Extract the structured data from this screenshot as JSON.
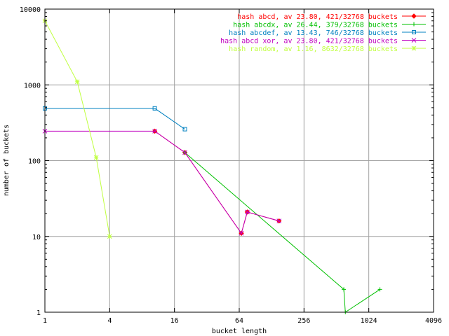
{
  "chart_data": {
    "type": "line",
    "xlabel": "bucket length",
    "ylabel": "number of buckets",
    "xscale": "log2",
    "yscale": "log10",
    "xlim": [
      1,
      4096
    ],
    "ylim": [
      1,
      10000
    ],
    "x_ticks": [
      {
        "value": 1,
        "label": "1"
      },
      {
        "value": 4,
        "label": "4"
      },
      {
        "value": 16,
        "label": "16"
      },
      {
        "value": 64,
        "label": "64"
      },
      {
        "value": 256,
        "label": "256"
      },
      {
        "value": 1024,
        "label": "1024"
      },
      {
        "value": 4096,
        "label": "4096"
      }
    ],
    "y_ticks": [
      {
        "value": 1,
        "label": "1"
      },
      {
        "value": 10,
        "label": "10"
      },
      {
        "value": 100,
        "label": "100"
      },
      {
        "value": 1000,
        "label": "1000"
      },
      {
        "value": 10000,
        "label": "10000"
      }
    ],
    "grid": true,
    "legend_position": "top-right",
    "series": [
      {
        "name": "hash abcd, av 23.80, 421/32768 buckets",
        "color": "#ff0000",
        "marker": "diamond",
        "points": [
          [
            10.5,
            245
          ],
          [
            20,
            128
          ],
          [
            67,
            11
          ],
          [
            76,
            21
          ],
          [
            150,
            16
          ]
        ],
        "hidden_behind": true
      },
      {
        "name": "hash abcdx, av 26.44, 379/32768 buckets",
        "color": "#00c000",
        "marker": "plus",
        "points": [
          [
            20,
            128
          ],
          [
            600,
            2
          ],
          [
            620,
            1
          ],
          [
            1300,
            2
          ]
        ]
      },
      {
        "name": "hash abcdef, av 13.43, 746/32768 buckets",
        "color": "#0080c0",
        "marker": "square",
        "points": [
          [
            1,
            490
          ],
          [
            10.5,
            490
          ],
          [
            20,
            260
          ]
        ]
      },
      {
        "name": "hash abcd xor, av 23.80, 421/32768 buckets",
        "color": "#c000c0",
        "marker": "cross",
        "points": [
          [
            1,
            245
          ],
          [
            10.5,
            245
          ],
          [
            20,
            128
          ],
          [
            67,
            11
          ],
          [
            76,
            21
          ],
          [
            150,
            16
          ]
        ]
      },
      {
        "name": "hash random, av 1.16, 8632/32768 buckets",
        "color": "#c0ff40",
        "marker": "star",
        "points": [
          [
            1,
            7000
          ],
          [
            2,
            1100
          ],
          [
            3,
            110
          ],
          [
            4,
            10
          ]
        ]
      }
    ]
  }
}
